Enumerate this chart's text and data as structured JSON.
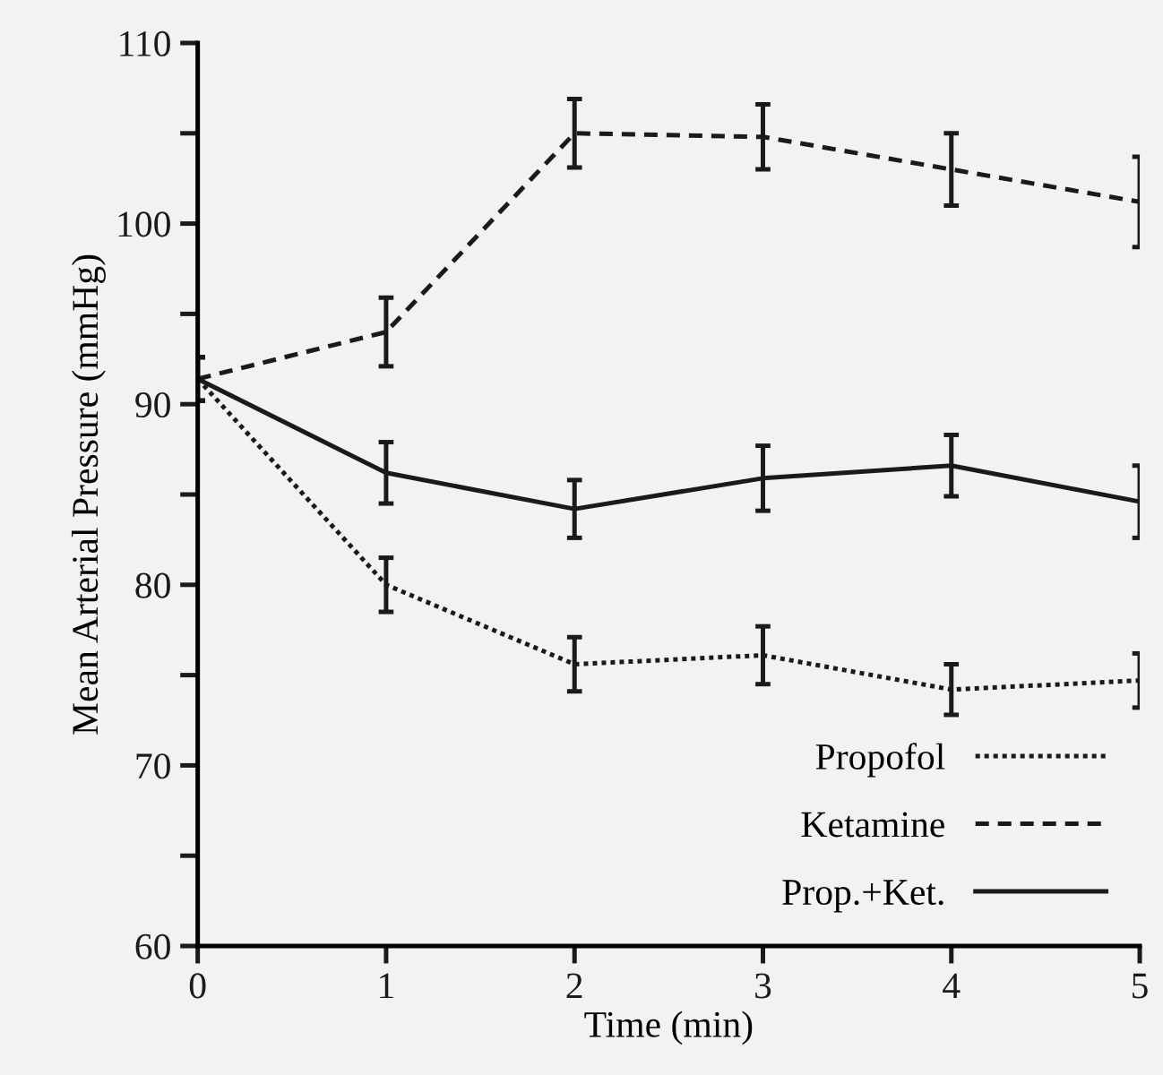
{
  "chart_data": {
    "type": "line",
    "xlabel": "Time (min)",
    "ylabel": "Mean Arterial Pressure (mmHg)",
    "x": [
      0,
      1,
      2,
      3,
      4,
      5
    ],
    "series": [
      {
        "name": "Propofol",
        "color": "#1a1a1a",
        "line_style": "dotted",
        "values": [
          91.4,
          80,
          75.6,
          76.1,
          74.2,
          74.7
        ],
        "errors": [
          1.2,
          1.5,
          1.5,
          1.6,
          1.4,
          1.5
        ]
      },
      {
        "name": "Ketamine",
        "color": "#1a1a1a",
        "line_style": "dashed",
        "values": [
          91.4,
          94,
          105,
          104.8,
          103,
          101.2
        ],
        "errors": [
          1.2,
          1.9,
          1.9,
          1.8,
          2,
          2.5
        ]
      },
      {
        "name": "Prop.+Ket.",
        "color": "#1a1a1a",
        "line_style": "solid",
        "values": [
          91.4,
          86.2,
          84.2,
          85.9,
          86.6,
          84.6
        ],
        "errors": [
          1.2,
          1.7,
          1.6,
          1.8,
          1.7,
          2
        ]
      }
    ],
    "xlim": [
      0,
      5
    ],
    "xticks": [
      0,
      1,
      2,
      3,
      4,
      5
    ],
    "ylim": [
      60,
      110
    ],
    "yticks": [
      60,
      {
        "value": 65,
        "label": null
      },
      70,
      {
        "value": 75,
        "label": null
      },
      80,
      {
        "value": 85,
        "label": null
      },
      90,
      {
        "value": 95,
        "label": null
      },
      100,
      {
        "value": 105,
        "label": null
      },
      110
    ],
    "marker": "none",
    "grid": false,
    "legend": "bottom right"
  }
}
